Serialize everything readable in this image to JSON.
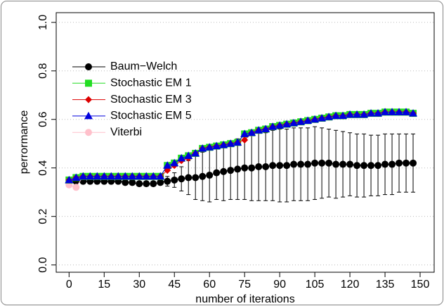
{
  "chart_data": {
    "type": "line",
    "xlabel": "number of iterations",
    "ylabel": "perrormance",
    "xlim": [
      -5.5,
      156
    ],
    "ylim": [
      -0.03,
      1.04
    ],
    "xticks": [
      0,
      15,
      30,
      45,
      60,
      75,
      90,
      105,
      120,
      135,
      150
    ],
    "yticks": [
      {
        "value": 0,
        "label": "0.0"
      },
      0.2,
      0.4,
      0.6,
      0.8,
      {
        "value": 1,
        "label": "1.0"
      }
    ],
    "grid": true,
    "legend": "upper left",
    "x": [
      0,
      3,
      6,
      9,
      12,
      15,
      18,
      21,
      24,
      27,
      30,
      33,
      36,
      39,
      42,
      45,
      48,
      51,
      54,
      57,
      60,
      63,
      66,
      69,
      72,
      75,
      78,
      81,
      84,
      87,
      90,
      93,
      96,
      99,
      102,
      105,
      108,
      111,
      114,
      117,
      120,
      123,
      126,
      129,
      132,
      135,
      138,
      141,
      144,
      147
    ],
    "series": [
      {
        "name": "Baum−Welch",
        "color": "#000000",
        "marker": "circle",
        "values": [
          0.34,
          0.345,
          0.345,
          0.345,
          0.345,
          0.345,
          0.345,
          0.345,
          0.34,
          0.34,
          0.335,
          0.335,
          0.335,
          0.34,
          0.345,
          0.35,
          0.355,
          0.36,
          0.36,
          0.365,
          0.37,
          0.38,
          0.385,
          0.39,
          0.395,
          0.4,
          0.4,
          0.405,
          0.405,
          0.41,
          0.41,
          0.41,
          0.415,
          0.415,
          0.415,
          0.42,
          0.42,
          0.42,
          0.415,
          0.415,
          0.415,
          0.41,
          0.41,
          0.41,
          0.41,
          0.415,
          0.415,
          0.42,
          0.42,
          0.42
        ],
        "errors": [
          0.01,
          0.01,
          0.01,
          0.01,
          0.01,
          0.01,
          0.01,
          0.01,
          0.01,
          0.01,
          0.01,
          0.01,
          0.01,
          0.01,
          0.02,
          0.03,
          0.05,
          0.07,
          0.09,
          0.1,
          0.11,
          0.11,
          0.12,
          0.12,
          0.125,
          0.13,
          0.135,
          0.14,
          0.14,
          0.145,
          0.15,
          0.15,
          0.15,
          0.15,
          0.15,
          0.15,
          0.145,
          0.14,
          0.14,
          0.135,
          0.13,
          0.13,
          0.13,
          0.125,
          0.125,
          0.125,
          0.125,
          0.12,
          0.12,
          0.12
        ]
      },
      {
        "name": "Stochastic EM 1",
        "color": "#22dd22",
        "marker": "square",
        "values": [
          0.35,
          0.36,
          0.365,
          0.365,
          0.365,
          0.365,
          0.365,
          0.365,
          0.365,
          0.365,
          0.365,
          0.365,
          0.365,
          0.365,
          0.41,
          0.42,
          0.44,
          0.45,
          0.46,
          0.48,
          0.485,
          0.49,
          0.495,
          0.5,
          0.505,
          0.54,
          0.545,
          0.555,
          0.56,
          0.57,
          0.575,
          0.58,
          0.585,
          0.59,
          0.595,
          0.6,
          0.605,
          0.61,
          0.615,
          0.615,
          0.62,
          0.62,
          0.62,
          0.625,
          0.625,
          0.63,
          0.63,
          0.63,
          0.63,
          0.625
        ]
      },
      {
        "name": "Stochastic EM 3",
        "color": "#dd0000",
        "marker": "diamond",
        "values": [
          0.35,
          0.36,
          0.365,
          0.365,
          0.365,
          0.365,
          0.365,
          0.365,
          0.365,
          0.365,
          0.365,
          0.365,
          0.365,
          0.365,
          0.39,
          0.41,
          0.43,
          0.44,
          0.46,
          0.48,
          0.485,
          0.49,
          0.495,
          0.5,
          0.505,
          0.515,
          0.545,
          0.555,
          0.56,
          0.57,
          0.575,
          0.58,
          0.585,
          0.59,
          0.595,
          0.6,
          0.605,
          0.61,
          0.615,
          0.615,
          0.62,
          0.62,
          0.62,
          0.625,
          0.625,
          0.63,
          0.63,
          0.63,
          0.63,
          0.625
        ]
      },
      {
        "name": "Stochastic EM 5",
        "color": "#0000dd",
        "marker": "triangle",
        "values": [
          0.35,
          0.36,
          0.365,
          0.365,
          0.365,
          0.365,
          0.365,
          0.365,
          0.365,
          0.365,
          0.365,
          0.365,
          0.365,
          0.365,
          0.41,
          0.42,
          0.44,
          0.45,
          0.46,
          0.48,
          0.485,
          0.49,
          0.495,
          0.5,
          0.505,
          0.54,
          0.545,
          0.555,
          0.56,
          0.57,
          0.575,
          0.58,
          0.585,
          0.59,
          0.595,
          0.6,
          0.605,
          0.61,
          0.615,
          0.615,
          0.62,
          0.62,
          0.62,
          0.625,
          0.625,
          0.63,
          0.63,
          0.63,
          0.63,
          0.625
        ]
      },
      {
        "name": "Viterbi",
        "color": "#ffc0cb",
        "marker": "circle",
        "values": [
          0.33,
          0.32,
          0.365,
          0.365,
          0.365,
          0.365,
          0.365,
          0.365,
          0.365,
          0.365,
          0.365,
          0.365,
          0.365,
          0.365,
          0.41,
          0.42,
          0.44,
          0.45,
          0.46,
          0.48,
          0.485,
          0.49,
          0.495,
          0.5,
          0.505,
          0.54,
          0.545,
          0.555,
          0.56,
          0.57,
          0.575,
          0.58,
          0.585,
          0.59,
          0.595,
          0.6,
          0.605,
          0.61,
          0.615,
          0.615,
          0.62,
          0.62,
          0.62,
          0.625,
          0.625,
          0.63,
          0.63,
          0.63,
          0.63,
          0.625
        ]
      }
    ]
  }
}
